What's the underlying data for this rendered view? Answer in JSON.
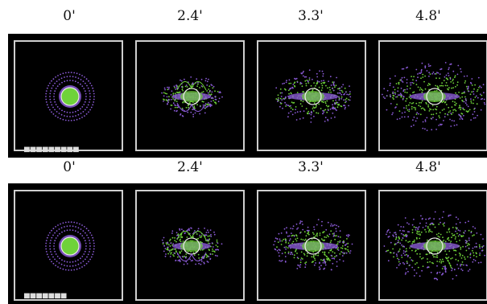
{
  "rows": [
    {
      "labels": [
        "0'",
        "2.4'",
        "3.3'",
        "4.8'"
      ]
    },
    {
      "labels": [
        "0'",
        "2.4'",
        "3.3'",
        "4.8'"
      ]
    }
  ],
  "colors": {
    "green": "#6fd23a",
    "purple": "#8a5ad6",
    "white": "#e8e8e8",
    "border": "#cfcfcf",
    "bg": "#000000"
  }
}
